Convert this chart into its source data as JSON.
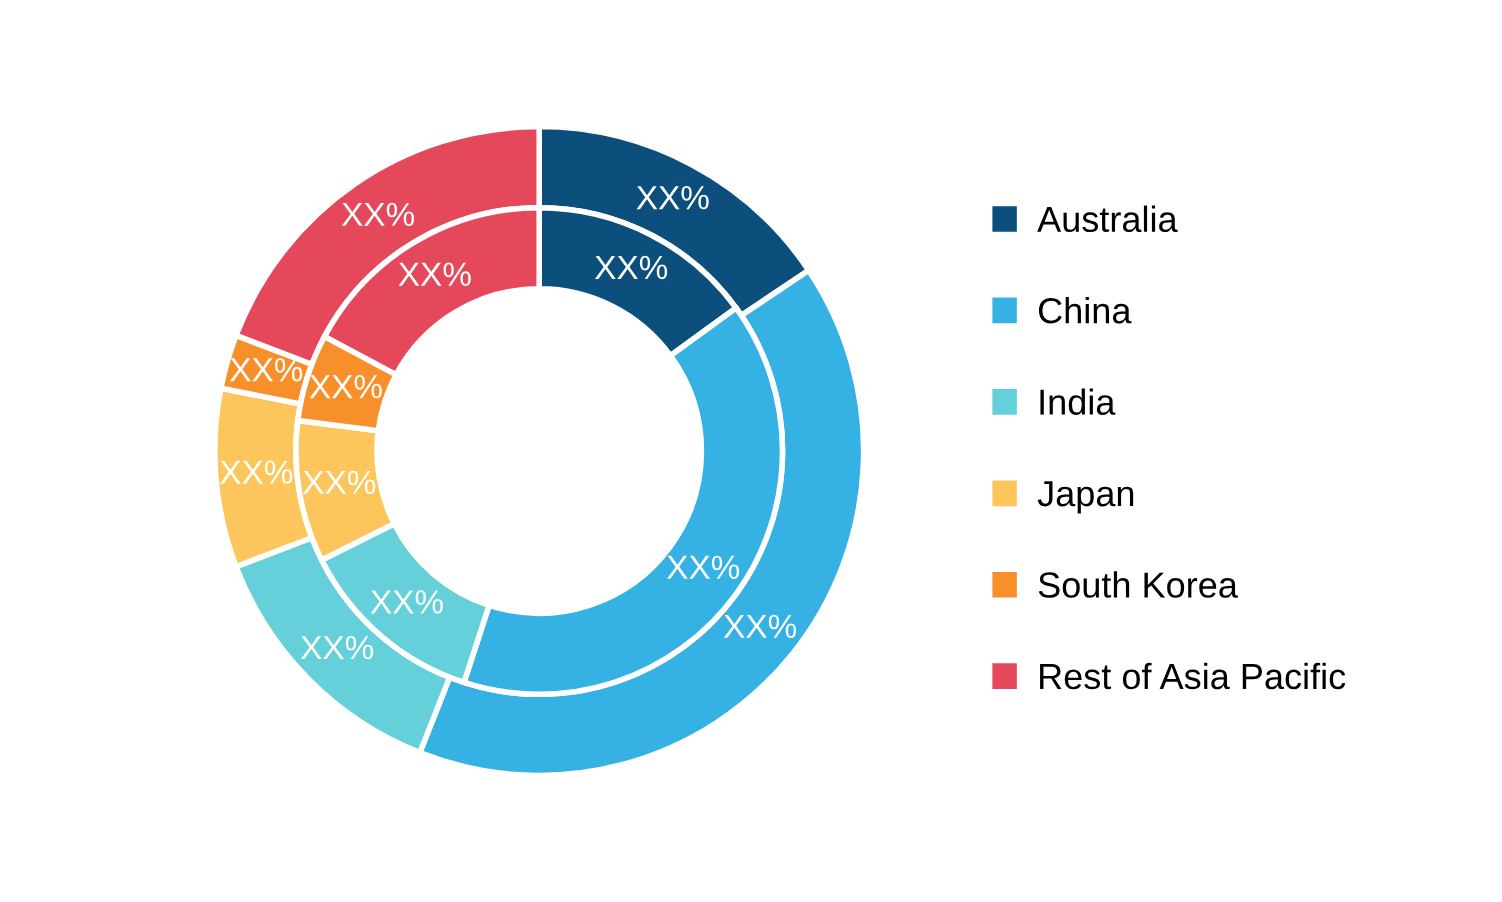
{
  "chart_data": {
    "type": "donut",
    "categories": [
      "Australia",
      "China",
      "India",
      "Japan",
      "South Korea",
      "Rest of Asia Pacific"
    ],
    "colors": [
      "#0d4f7c",
      "#35b1e3",
      "#65d0d9",
      "#fdc65c",
      "#f7902b",
      "#e5485b"
    ],
    "series": [
      {
        "values": [
          15.6,
          40.4,
          13.2,
          8.9,
          2.7,
          19.2
        ],
        "value_labels": [
          "XX%",
          "XX%",
          "XX%",
          "XX%",
          "XX%",
          "XX%"
        ]
      },
      {
        "values": [
          15.0,
          40.0,
          12.6,
          9.4,
          5.8,
          17.2
        ],
        "value_labels": [
          "XX%",
          "XX%",
          "XX%",
          "XX%",
          "XX%",
          "XX%"
        ]
      }
    ],
    "legend": "right"
  }
}
